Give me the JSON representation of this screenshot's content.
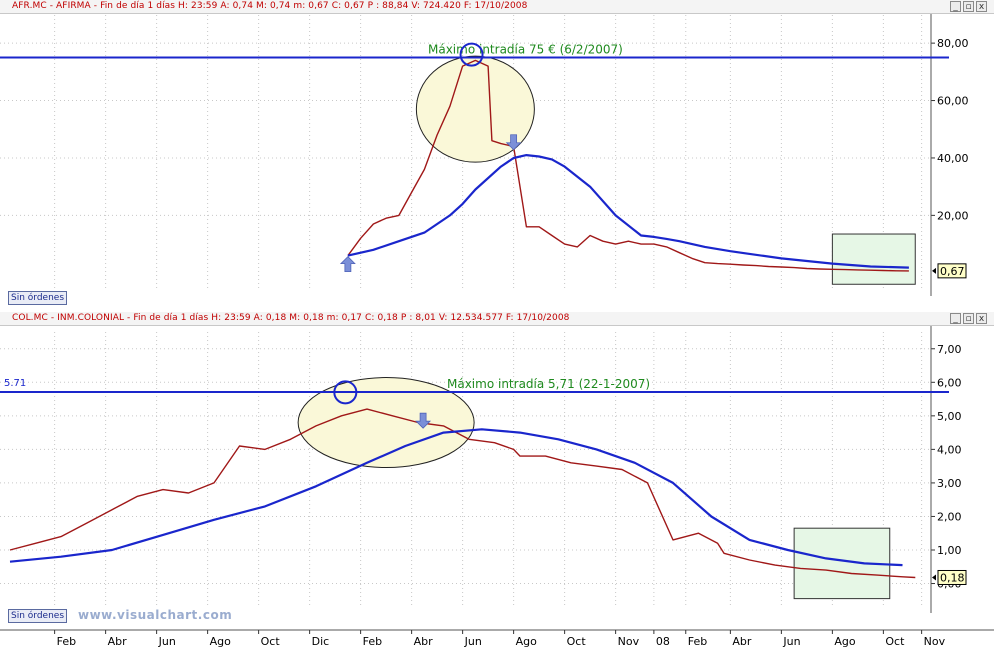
{
  "colors": {
    "background": "#ffffff",
    "grid": "#c8c8c8",
    "price_series": "#a01818",
    "moving_average": "#1a26cc",
    "resistance_line": "#1a26cc",
    "annotation_text": "#1f8a1f",
    "highlight_ellipse_fill": "#faf8d8",
    "highlight_box_fill": "#e6f7e6",
    "title_text": "#c00000",
    "last_value_badge": "#ffffc8"
  },
  "window_buttons": [
    "_",
    "▫",
    "x"
  ],
  "sin_ordenes_label": "Sin órdenes",
  "watermark": "www.visualchart.com",
  "chart_data": [
    {
      "type": "line",
      "title": "AFR.MC - AFIRMA - Fin de día 1 días  H: 23:59  A: 0,74  M: 0,74  m: 0,67  C: 0,67  P : 88,84  V: 724.420  F: 17/10/2008",
      "ylim": [
        -6,
        89.8
      ],
      "y_ticks": [
        "80,00",
        "60,00",
        "40,00",
        "20,00"
      ],
      "y_tick_values": [
        80,
        60,
        40,
        20
      ],
      "grid": true,
      "resistance": {
        "value": 75,
        "label": "Máximo intradía 75 € (6/2/2007)"
      },
      "last_value": {
        "value": 0.67,
        "label": "0,67"
      },
      "series": [
        {
          "style": "price",
          "x": [
            26.5,
            27.5,
            28.5,
            29.5,
            30.5,
            31.5,
            32.5,
            33.5,
            34.5,
            35.5,
            36.5,
            37.5,
            37.8,
            38.5,
            39.5,
            40.5,
            41.5,
            42.5,
            43.5,
            44.5,
            45.5,
            46.5,
            47.5,
            48.5,
            49.5,
            50.5,
            51.5,
            52.5,
            53.5,
            54.5,
            55.5,
            56.5,
            57.5,
            58.5,
            59.5,
            60.5,
            61.5,
            62.5,
            63.5,
            64.5,
            65.5,
            66.5,
            67.5,
            68.5,
            69.5,
            70.5
          ],
          "values": [
            6,
            12,
            17,
            19,
            20,
            28,
            36,
            48,
            58,
            72,
            74,
            72,
            46,
            45,
            44,
            16,
            16,
            13,
            10,
            9,
            13,
            11,
            10,
            11,
            10,
            10,
            9,
            7,
            5,
            3.5,
            3.2,
            3,
            2.7,
            2.5,
            2.2,
            2,
            1.8,
            1.5,
            1.3,
            1.2,
            1.1,
            1.0,
            0.9,
            0.8,
            0.7,
            0.67
          ]
        },
        {
          "style": "moving_average",
          "x": [
            26.5,
            28.5,
            30.5,
            32.5,
            34.5,
            35.5,
            36.5,
            38.5,
            39.5,
            40.5,
            41.5,
            42.5,
            43.5,
            45.5,
            47.5,
            49.5,
            50.5,
            51.5,
            52.5,
            53.5,
            54.5,
            56.5,
            60.5,
            64.5,
            67.5,
            70.5
          ],
          "values": [
            6,
            8,
            11,
            14,
            20,
            24,
            29,
            37,
            40,
            41,
            40.5,
            39.5,
            37,
            30,
            20,
            13,
            12.5,
            11.8,
            11,
            10,
            9,
            7.5,
            5,
            3.2,
            2.2,
            1.8
          ]
        }
      ],
      "highlight_ellipse": {
        "center_x": 36.5,
        "center_y": 57
      },
      "highlight_circle": {
        "x": 36.2,
        "y": 76
      },
      "markers": [
        {
          "shape": "arrow-up",
          "x": 26.5,
          "y": 2.5
        },
        {
          "shape": "arrow-down",
          "x": 39.5,
          "y": 46
        }
      ],
      "highlight_box": {
        "x0": 64.5,
        "x1": 71,
        "y0": -4,
        "y1": 13.5
      }
    },
    {
      "type": "line",
      "title": "COL.MC - INM.COLONIAL - Fin de día 1 días  H: 23:59  A: 0,18  M: 0,18  m: 0,17  C: 0,18  P : 8,01  V: 12.534.577  F: 17/10/2008",
      "ylim": [
        -0.7,
        7.5
      ],
      "y_ticks": [
        "7,00",
        "6,00",
        "5,00",
        "4,00",
        "3,00",
        "2,00",
        "1,00",
        "0,00"
      ],
      "y_tick_values": [
        7,
        6,
        5,
        4,
        3,
        2,
        1,
        0
      ],
      "grid": true,
      "resistance": {
        "value": 5.71,
        "label": "Máximo intradía 5,71 (22-1-2007)",
        "left_label": "5.71"
      },
      "last_value": {
        "value": 0.18,
        "label": "0,18"
      },
      "series": [
        {
          "style": "price",
          "x": [
            0,
            2,
            4,
            6,
            8,
            10,
            12,
            14,
            16,
            18,
            20,
            22,
            24,
            26,
            28,
            30,
            32,
            34,
            36,
            38,
            39.5,
            40,
            42,
            44,
            46,
            48,
            50,
            52,
            54,
            55.5,
            56,
            58,
            60,
            62,
            64,
            66,
            68,
            70,
            71
          ],
          "values": [
            1.0,
            1.2,
            1.4,
            1.8,
            2.2,
            2.6,
            2.8,
            2.7,
            3.0,
            4.1,
            4.0,
            4.3,
            4.7,
            5.0,
            5.2,
            5.0,
            4.8,
            4.7,
            4.3,
            4.2,
            4.0,
            3.8,
            3.8,
            3.6,
            3.5,
            3.4,
            3.0,
            1.3,
            1.5,
            1.2,
            0.9,
            0.7,
            0.55,
            0.45,
            0.4,
            0.3,
            0.25,
            0.2,
            0.18
          ]
        },
        {
          "style": "moving_average",
          "x": [
            0,
            4,
            8,
            12,
            16,
            20,
            24,
            28,
            31,
            34,
            37,
            40,
            43,
            46,
            49,
            52,
            55,
            58,
            61,
            64,
            67,
            70
          ],
          "values": [
            0.65,
            0.8,
            1.0,
            1.45,
            1.9,
            2.3,
            2.9,
            3.6,
            4.1,
            4.5,
            4.6,
            4.5,
            4.3,
            4.0,
            3.6,
            3.0,
            2.0,
            1.3,
            1.0,
            0.75,
            0.6,
            0.55
          ]
        }
      ],
      "highlight_ellipse": {
        "center_x": 29.5,
        "center_y": 4.8
      },
      "highlight_circle": {
        "x": 26.3,
        "y": 5.7
      },
      "markers": [
        {
          "shape": "arrow-down",
          "x": 32.4,
          "y": 4.9
        }
      ],
      "highlight_box": {
        "x0": 61.5,
        "x1": 69,
        "y0": -0.45,
        "y1": 1.65
      }
    }
  ],
  "x_axis": {
    "labels": [
      "Feb",
      "Abr",
      "Jun",
      "Ago",
      "Oct",
      "Dic",
      "Feb",
      "Abr",
      "Jun",
      "Ago",
      "Oct",
      "Nov",
      "08",
      "Feb",
      "Abr",
      "Jun",
      "Ago",
      "Oct",
      "Nov"
    ],
    "positions": [
      3.5,
      7.5,
      11.5,
      15.5,
      19.5,
      23.5,
      27.5,
      31.5,
      35.5,
      39.5,
      43.5,
      47.5,
      50.5,
      53,
      56.5,
      60.5,
      64.5,
      68.5,
      71.5
    ]
  }
}
